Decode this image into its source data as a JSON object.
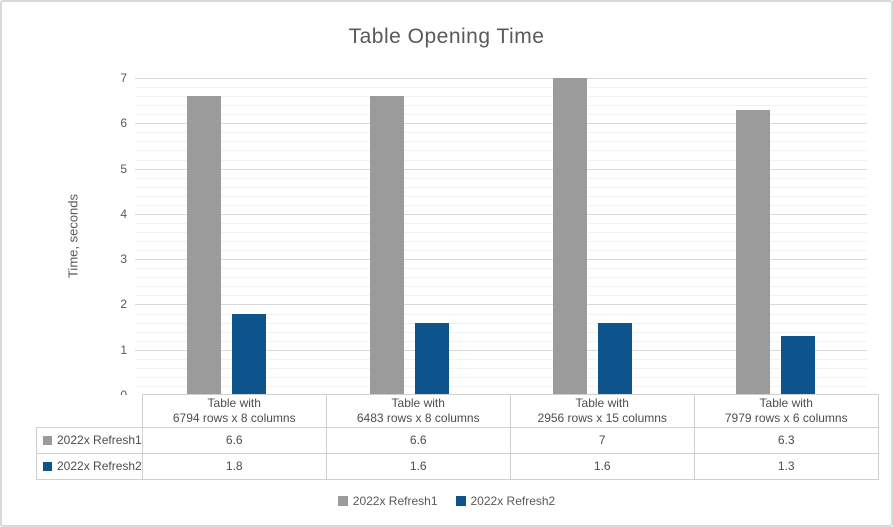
{
  "chart_data": {
    "type": "bar",
    "title": "Table Opening Time",
    "ylabel": "Time, seconds",
    "ylim": [
      0,
      7
    ],
    "y_ticks": [
      0,
      1,
      2,
      3,
      4,
      5,
      6,
      7
    ],
    "y_major_step": 1,
    "y_minor_step": 0.2,
    "grid": "horizontal major and minor gridlines",
    "legend_position": "bottom",
    "data_table_shown": true,
    "categories": [
      {
        "line1": "Table with",
        "line2": "6794 rows x 8 columns"
      },
      {
        "line1": "Table with",
        "line2": "6483 rows x 8 columns"
      },
      {
        "line1": "Table with",
        "line2": "2956 rows x 15 columns"
      },
      {
        "line1": "Table with",
        "line2": "7979 rows x 6 columns"
      }
    ],
    "series": [
      {
        "name": "2022x Refresh1",
        "color": "#9B9B9B",
        "values": [
          6.6,
          6.6,
          7,
          6.3
        ]
      },
      {
        "name": "2022x Refresh2",
        "color": "#0E548C",
        "values": [
          1.8,
          1.6,
          1.6,
          1.3
        ]
      }
    ]
  },
  "colors": {
    "title_text": "#595959",
    "axis_text": "#595959",
    "table_text": "#4D4D4D",
    "gridline_major": "#D9D9D9",
    "gridline_minor": "#F2F2F2",
    "table_border": "#D0D0D0",
    "outer_border": "#D9D9D9"
  }
}
